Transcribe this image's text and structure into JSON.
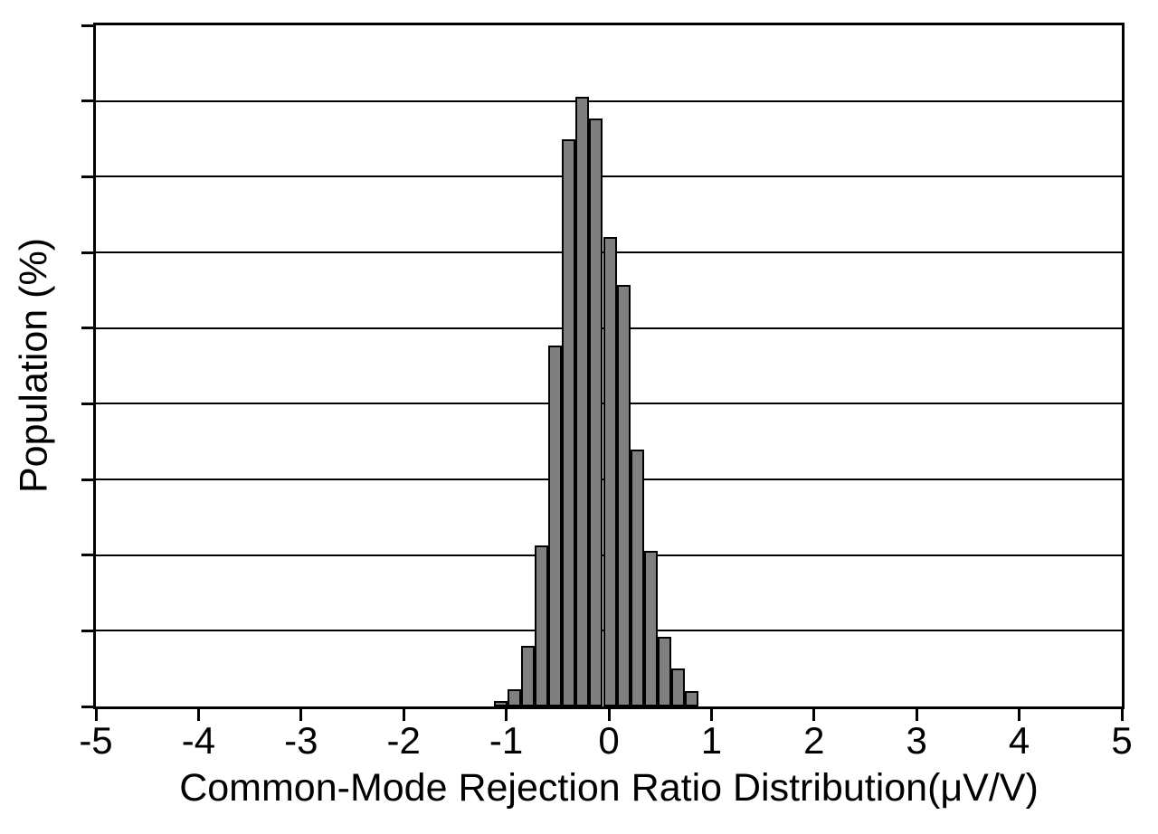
{
  "figure": {
    "background": "#ffffff",
    "frame_color": "#000000"
  },
  "chart_data": {
    "type": "bar",
    "subtype": "histogram",
    "title": "",
    "xlabel": "Common-Mode Rejection Ratio Distribution(μV/V)",
    "ylabel": "Population (%)",
    "xlim": [
      -5,
      5
    ],
    "ylim": [
      0,
      18
    ],
    "x_tick_values": [
      -5,
      -4,
      -3,
      -2,
      -1,
      0,
      1,
      2,
      3,
      4,
      5
    ],
    "x_tick_labels": [
      "-5",
      "-4",
      "-3",
      "-2",
      "-1",
      "0",
      "1",
      "2",
      "3",
      "4",
      "5"
    ],
    "y_tick_values": [
      0,
      2,
      4,
      6,
      8,
      10,
      12,
      14,
      16,
      18
    ],
    "y_tick_labels_visible": false,
    "grid": {
      "horizontal_values": [
        2,
        4,
        6,
        8,
        10,
        12,
        14,
        16
      ],
      "color": "#000000"
    },
    "legend": null,
    "bin_width": 0.1333,
    "bin_centers": [
      -1.057,
      -0.924,
      -0.79,
      -0.657,
      -0.524,
      -0.39,
      -0.257,
      -0.124,
      0.01,
      0.143,
      0.276,
      0.41,
      0.543,
      0.676,
      0.81
    ],
    "values_percent": [
      0.15,
      0.45,
      1.6,
      4.25,
      9.55,
      15.0,
      16.1,
      15.55,
      12.4,
      11.15,
      6.8,
      4.1,
      1.85,
      1.0,
      0.4
    ],
    "bar_fill": "#7f7f7f",
    "bar_edge": "#000000"
  }
}
